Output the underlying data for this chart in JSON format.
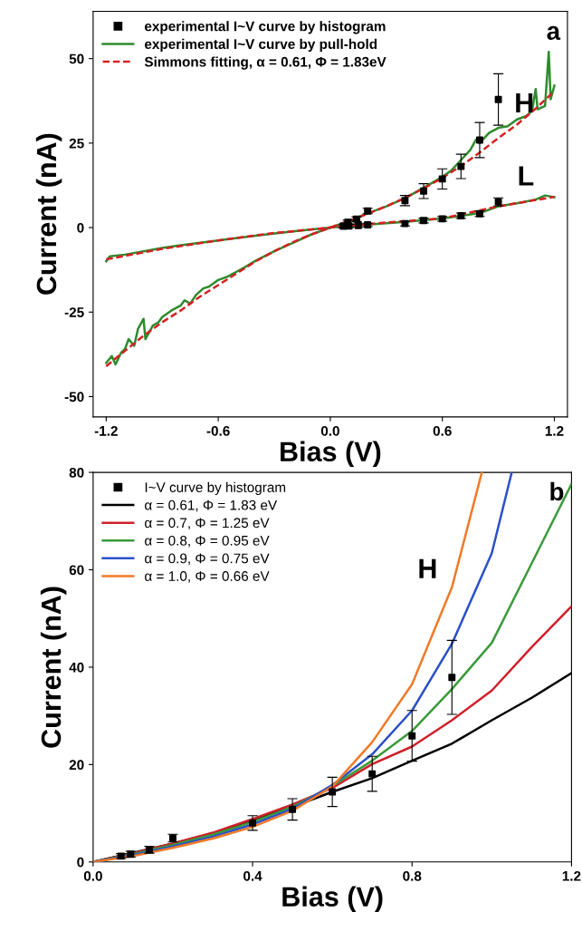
{
  "chart_data": [
    {
      "type": "line",
      "xlabel": "Bias (V)",
      "ylabel": "Current (nA)",
      "xlim": [
        -1.27,
        1.27
      ],
      "ylim": [
        -56,
        64
      ],
      "xticks": [
        -1.2,
        -0.6,
        {
          "value": 0,
          "label": "0.0"
        },
        0.6,
        1.2
      ],
      "yticks": [
        -50,
        -25,
        0,
        25,
        50
      ],
      "grid": false,
      "legend": "top left",
      "annotations": [
        "a",
        "H",
        "L"
      ],
      "series": [
        {
          "name": "experimental I~V curve by histogram",
          "type": "scatter",
          "marker": "square",
          "color": "#000000",
          "x": [
            0.094,
            0.141,
            0.2,
            0.4,
            0.5,
            0.6,
            0.7,
            0.8,
            0.9,
            0.07,
            0.1,
            0.15,
            0.2,
            0.4,
            0.5,
            0.6,
            0.7,
            0.8,
            0.9
          ],
          "values": [
            1.6,
            2.5,
            4.9,
            8.0,
            10.8,
            14.4,
            18.1,
            25.9,
            37.9,
            0.4,
            0.5,
            0.6,
            0.8,
            1.2,
            2.1,
            2.6,
            3.5,
            4.1,
            7.6
          ],
          "errors": [
            0.6,
            0.7,
            0.8,
            1.5,
            2.2,
            3.0,
            3.6,
            5.2,
            7.6,
            0.5,
            0.5,
            0.5,
            0.5,
            0.7,
            0.7,
            0.7,
            0.8,
            0.8,
            1.2
          ]
        },
        {
          "name": "experimental I~V curve by pull-hold",
          "color": "#2e8b2e",
          "line_style": "solid",
          "x": [
            -1.2,
            -1.17,
            -1.15,
            -1.12,
            -1.1,
            -1.08,
            -1.05,
            -1.03,
            -1.0,
            -0.99,
            -0.97,
            -0.95,
            -0.92,
            -0.9,
            -0.85,
            -0.8,
            -0.78,
            -0.75,
            -0.72,
            -0.68,
            -0.65,
            -0.6,
            -0.55,
            -0.5,
            -0.45,
            -0.4,
            -0.3,
            -0.2,
            -0.1,
            0.0,
            0.1,
            0.2,
            0.3,
            0.4,
            0.5,
            0.6,
            0.65,
            0.7,
            0.75,
            0.78,
            0.8,
            0.85,
            0.9,
            0.95,
            1.0,
            1.05,
            1.08,
            1.1,
            1.11,
            1.15,
            1.17,
            1.18,
            1.2
          ],
          "values": [
            -40,
            -38,
            -40.5,
            -37,
            -36,
            -33,
            -35,
            -30,
            -27,
            -33,
            -31,
            -29,
            -28,
            -26.5,
            -24.5,
            -23,
            -21.5,
            -22.5,
            -20,
            -18,
            -17.5,
            -15.5,
            -14.5,
            -13,
            -11.5,
            -9.8,
            -7,
            -4.5,
            -2,
            0,
            2,
            4.2,
            6.3,
            8.7,
            11.8,
            15,
            17,
            20,
            23,
            26,
            25,
            28,
            29.5,
            30,
            32,
            33,
            34.5,
            41,
            35,
            36,
            52,
            38,
            42
          ]
        },
        {
          "color": "#2e8b2e",
          "line_style": "solid",
          "x": [
            -1.2,
            -1.18,
            -1.1,
            -1.0,
            -0.9,
            -0.8,
            -0.6,
            -0.4,
            -0.2,
            0.0,
            0.2,
            0.4,
            0.6,
            0.8,
            0.9,
            1.0,
            1.1,
            1.15,
            1.2
          ],
          "values": [
            -10,
            -8.5,
            -8,
            -7,
            -6,
            -5.2,
            -3.8,
            -2.4,
            -1.1,
            0,
            0.9,
            1.7,
            2.7,
            4.3,
            6.3,
            7.2,
            8.3,
            9.5,
            9
          ]
        },
        {
          "name": "Simmons fitting, α = 0.61, Φ = 1.83eV",
          "color": "#d62020",
          "line_style": "dashed",
          "x": [
            -1.2,
            -1.1,
            -1.0,
            -0.9,
            -0.8,
            -0.7,
            -0.6,
            -0.5,
            -0.4,
            -0.3,
            -0.2,
            -0.1,
            0.0,
            0.1,
            0.2,
            0.3,
            0.4,
            0.5,
            0.6,
            0.7,
            0.8,
            0.9,
            1.0,
            1.1,
            1.2
          ],
          "values": [
            -41,
            -36.5,
            -32,
            -28,
            -24.5,
            -20.5,
            -17,
            -13.5,
            -10,
            -7,
            -4.3,
            -2,
            0,
            2,
            4.1,
            6.3,
            8.8,
            11.6,
            14.7,
            18.2,
            22.2,
            26.5,
            30.5,
            35.2,
            40.4
          ]
        },
        {
          "color": "#d62020",
          "line_style": "dashed",
          "x": [
            -1.2,
            -0.9,
            -0.6,
            -0.3,
            0.0,
            0.3,
            0.6,
            0.9,
            1.2
          ],
          "values": [
            -9.4,
            -6.3,
            -3.8,
            -1.6,
            0,
            1.5,
            2.7,
            6.3,
            9.1
          ]
        }
      ]
    },
    {
      "type": "line",
      "xlabel": "Bias (V)",
      "ylabel": "Current (nA)",
      "xlim": [
        0.0,
        1.2
      ],
      "ylim": [
        0,
        80
      ],
      "xticks": [
        {
          "value": 0,
          "label": "0.0"
        },
        0.4,
        0.8,
        1.2
      ],
      "yticks": [
        0,
        20,
        40,
        60,
        80
      ],
      "grid": false,
      "legend": "top left",
      "annotations": [
        "b",
        "H"
      ],
      "series": [
        {
          "name": "I~V curve by histogram",
          "type": "scatter",
          "marker": "square",
          "color": "#000000",
          "x": [
            0.07,
            0.094,
            0.141,
            0.2,
            0.4,
            0.5,
            0.6,
            0.7,
            0.8,
            0.9
          ],
          "values": [
            1.2,
            1.6,
            2.5,
            4.9,
            8.0,
            10.8,
            14.4,
            18.1,
            25.9,
            37.9
          ],
          "errors": [
            0.5,
            0.6,
            0.7,
            0.8,
            1.5,
            2.2,
            3.0,
            3.6,
            5.2,
            7.6
          ]
        },
        {
          "name": "α = 0.61, Φ = 1.83 eV",
          "color": "#000000",
          "line_style": "solid",
          "x": [
            0.0,
            0.1,
            0.2,
            0.3,
            0.4,
            0.5,
            0.6,
            0.7,
            0.8,
            0.9,
            1.0,
            1.1,
            1.2
          ],
          "values": [
            0,
            1.9,
            3.8,
            5.9,
            8.6,
            11.3,
            14.4,
            17.2,
            20.8,
            24.3,
            29.1,
            33.7,
            38.8
          ]
        },
        {
          "name": "α = 0.7, Φ = 1.25 eV",
          "color": "#d0202a",
          "line_style": "solid",
          "x": [
            0.0,
            0.1,
            0.2,
            0.3,
            0.4,
            0.5,
            0.6,
            0.7,
            0.8,
            0.9,
            1.0,
            1.1,
            1.2
          ],
          "values": [
            0,
            1.8,
            3.8,
            6.0,
            8.8,
            11.8,
            15.2,
            20.1,
            23.7,
            29.1,
            35.2,
            44.1,
            52.5
          ]
        },
        {
          "name": "α = 0.8, Φ = 0.95 eV",
          "color": "#3a9a3a",
          "line_style": "solid",
          "x": [
            0.0,
            0.1,
            0.2,
            0.3,
            0.4,
            0.5,
            0.6,
            0.7,
            0.8,
            0.9,
            1.0,
            1.1,
            1.2
          ],
          "values": [
            0,
            1.6,
            3.5,
            5.6,
            8.2,
            11.3,
            15.6,
            20.8,
            26.9,
            35.5,
            45.0,
            61.3,
            77.6
          ]
        },
        {
          "name": "α = 0.9, Φ = 0.75 eV",
          "color": "#2a50c8",
          "line_style": "solid",
          "x": [
            0.0,
            0.1,
            0.2,
            0.3,
            0.4,
            0.5,
            0.6,
            0.7,
            0.8,
            0.9,
            1.0,
            1.05
          ],
          "values": [
            0,
            1.4,
            3.2,
            5.2,
            7.7,
            10.9,
            15.8,
            22.1,
            31.1,
            44.8,
            63.4,
            80
          ]
        },
        {
          "name": "α = 1.0, Φ = 0.66 eV",
          "color": "#f07a28",
          "line_style": "solid",
          "x": [
            0.0,
            0.1,
            0.2,
            0.3,
            0.4,
            0.5,
            0.6,
            0.7,
            0.8,
            0.9,
            0.975
          ],
          "values": [
            0,
            1.2,
            2.9,
            4.8,
            7.2,
            10.5,
            15.5,
            24.6,
            36.5,
            56.4,
            80
          ]
        }
      ]
    }
  ]
}
